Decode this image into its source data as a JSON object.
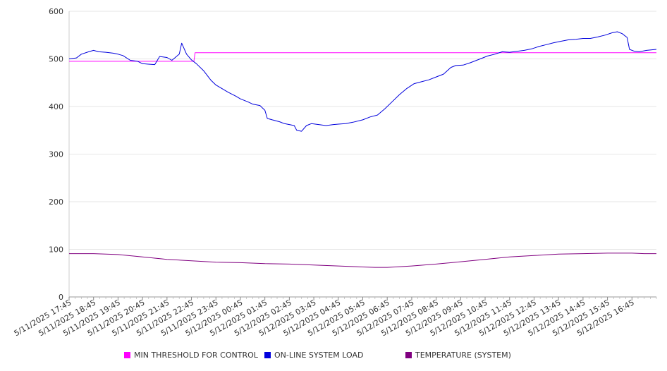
{
  "chart_data": {
    "type": "line",
    "title": "",
    "xlabel": "",
    "ylabel": "",
    "ylim": [
      0,
      600
    ],
    "y_ticks": [
      0,
      100,
      200,
      300,
      400,
      500,
      600
    ],
    "x_tick_labels": [
      "5/11/2025 17:45",
      "5/11/2025 18:45",
      "5/11/2025 19:45",
      "5/11/2025 20:45",
      "5/11/2025 21:45",
      "5/11/2025 22:45",
      "5/11/2025 23:45",
      "5/12/2025 00:45",
      "5/12/2025 01:45",
      "5/12/2025 02:45",
      "5/12/2025 03:45",
      "5/12/2025 04:45",
      "5/12/2025 05:45",
      "5/12/2025 06:45",
      "5/12/2025 07:45",
      "5/12/2025 08:45",
      "5/12/2025 09:45",
      "5/12/2025 10:45",
      "5/12/2025 11:45",
      "5/12/2025 12:45",
      "5/12/2025 13:45",
      "5/12/2025 14:45",
      "5/12/2025 15:45",
      "5/12/2025 16:45"
    ],
    "x_unit": "hours since 5/11/2025 17:45",
    "x_range": [
      0,
      24
    ],
    "grid": "horizontal",
    "legend_position": "bottom",
    "series": [
      {
        "name": "MIN THRESHOLD FOR CONTROL",
        "color": "#ff00ff",
        "points": [
          [
            0,
            495
          ],
          [
            5.1,
            495
          ],
          [
            5.15,
            513
          ],
          [
            24,
            513
          ]
        ]
      },
      {
        "name": "ON-LINE SYSTEM LOAD",
        "color": "#0000dd",
        "points": [
          [
            0,
            500
          ],
          [
            0.3,
            502
          ],
          [
            0.5,
            510
          ],
          [
            0.8,
            515
          ],
          [
            1.0,
            518
          ],
          [
            1.2,
            515
          ],
          [
            1.5,
            514
          ],
          [
            1.8,
            512
          ],
          [
            2.0,
            510
          ],
          [
            2.2,
            507
          ],
          [
            2.5,
            497
          ],
          [
            2.8,
            495
          ],
          [
            3.0,
            490
          ],
          [
            3.2,
            489
          ],
          [
            3.5,
            488
          ],
          [
            3.7,
            505
          ],
          [
            4.0,
            503
          ],
          [
            4.2,
            497
          ],
          [
            4.5,
            510
          ],
          [
            4.6,
            533
          ],
          [
            4.8,
            510
          ],
          [
            5.0,
            498
          ],
          [
            5.2,
            490
          ],
          [
            5.5,
            475
          ],
          [
            5.8,
            455
          ],
          [
            6.0,
            445
          ],
          [
            6.3,
            436
          ],
          [
            6.5,
            430
          ],
          [
            6.8,
            422
          ],
          [
            7.0,
            416
          ],
          [
            7.3,
            410
          ],
          [
            7.5,
            405
          ],
          [
            7.8,
            402
          ],
          [
            8.0,
            392
          ],
          [
            8.1,
            375
          ],
          [
            8.3,
            372
          ],
          [
            8.6,
            368
          ],
          [
            8.8,
            364
          ],
          [
            9.0,
            362
          ],
          [
            9.2,
            360
          ],
          [
            9.3,
            350
          ],
          [
            9.5,
            348
          ],
          [
            9.7,
            360
          ],
          [
            9.9,
            364
          ],
          [
            10.2,
            362
          ],
          [
            10.5,
            360
          ],
          [
            10.8,
            362
          ],
          [
            11.0,
            363
          ],
          [
            11.3,
            364
          ],
          [
            11.6,
            367
          ],
          [
            12.0,
            372
          ],
          [
            12.3,
            378
          ],
          [
            12.6,
            382
          ],
          [
            12.9,
            395
          ],
          [
            13.2,
            410
          ],
          [
            13.5,
            425
          ],
          [
            13.8,
            438
          ],
          [
            14.1,
            448
          ],
          [
            14.4,
            452
          ],
          [
            14.7,
            456
          ],
          [
            15.0,
            462
          ],
          [
            15.3,
            468
          ],
          [
            15.6,
            482
          ],
          [
            15.8,
            486
          ],
          [
            16.1,
            487
          ],
          [
            16.4,
            492
          ],
          [
            16.8,
            500
          ],
          [
            17.1,
            506
          ],
          [
            17.4,
            510
          ],
          [
            17.7,
            515
          ],
          [
            18.0,
            514
          ],
          [
            18.3,
            516
          ],
          [
            18.6,
            518
          ],
          [
            18.9,
            521
          ],
          [
            19.2,
            526
          ],
          [
            19.5,
            530
          ],
          [
            19.8,
            534
          ],
          [
            20.1,
            537
          ],
          [
            20.4,
            540
          ],
          [
            20.7,
            541
          ],
          [
            21.0,
            543
          ],
          [
            21.3,
            543
          ],
          [
            21.6,
            546
          ],
          [
            21.9,
            550
          ],
          [
            22.2,
            555
          ],
          [
            22.4,
            557
          ],
          [
            22.6,
            553
          ],
          [
            22.8,
            545
          ],
          [
            22.9,
            520
          ],
          [
            23.1,
            516
          ],
          [
            23.3,
            515
          ],
          [
            23.6,
            518
          ],
          [
            24.0,
            520
          ]
        ]
      },
      {
        "name": "TEMPERATURE (SYSTEM)",
        "color": "#800080",
        "points": [
          [
            0,
            91
          ],
          [
            1.0,
            91
          ],
          [
            2.0,
            89
          ],
          [
            3.0,
            84
          ],
          [
            4.0,
            79
          ],
          [
            5.0,
            76
          ],
          [
            6.0,
            73
          ],
          [
            7.0,
            72
          ],
          [
            8.0,
            70
          ],
          [
            9.0,
            69
          ],
          [
            10.0,
            67
          ],
          [
            11.0,
            65
          ],
          [
            12.0,
            63
          ],
          [
            12.5,
            62
          ],
          [
            13.0,
            62
          ],
          [
            14.0,
            65
          ],
          [
            15.0,
            69
          ],
          [
            16.0,
            74
          ],
          [
            17.0,
            79
          ],
          [
            18.0,
            84
          ],
          [
            19.0,
            87
          ],
          [
            20.0,
            90
          ],
          [
            21.0,
            91
          ],
          [
            22.0,
            92
          ],
          [
            23.0,
            92
          ],
          [
            23.5,
            91
          ],
          [
            24.0,
            91
          ]
        ]
      }
    ]
  },
  "legend": {
    "items": [
      {
        "label": "MIN THRESHOLD FOR CONTROL",
        "color": "#ff00ff"
      },
      {
        "label": "ON-LINE SYSTEM LOAD",
        "color": "#0000dd"
      },
      {
        "label": "TEMPERATURE (SYSTEM)",
        "color": "#800080"
      }
    ]
  }
}
